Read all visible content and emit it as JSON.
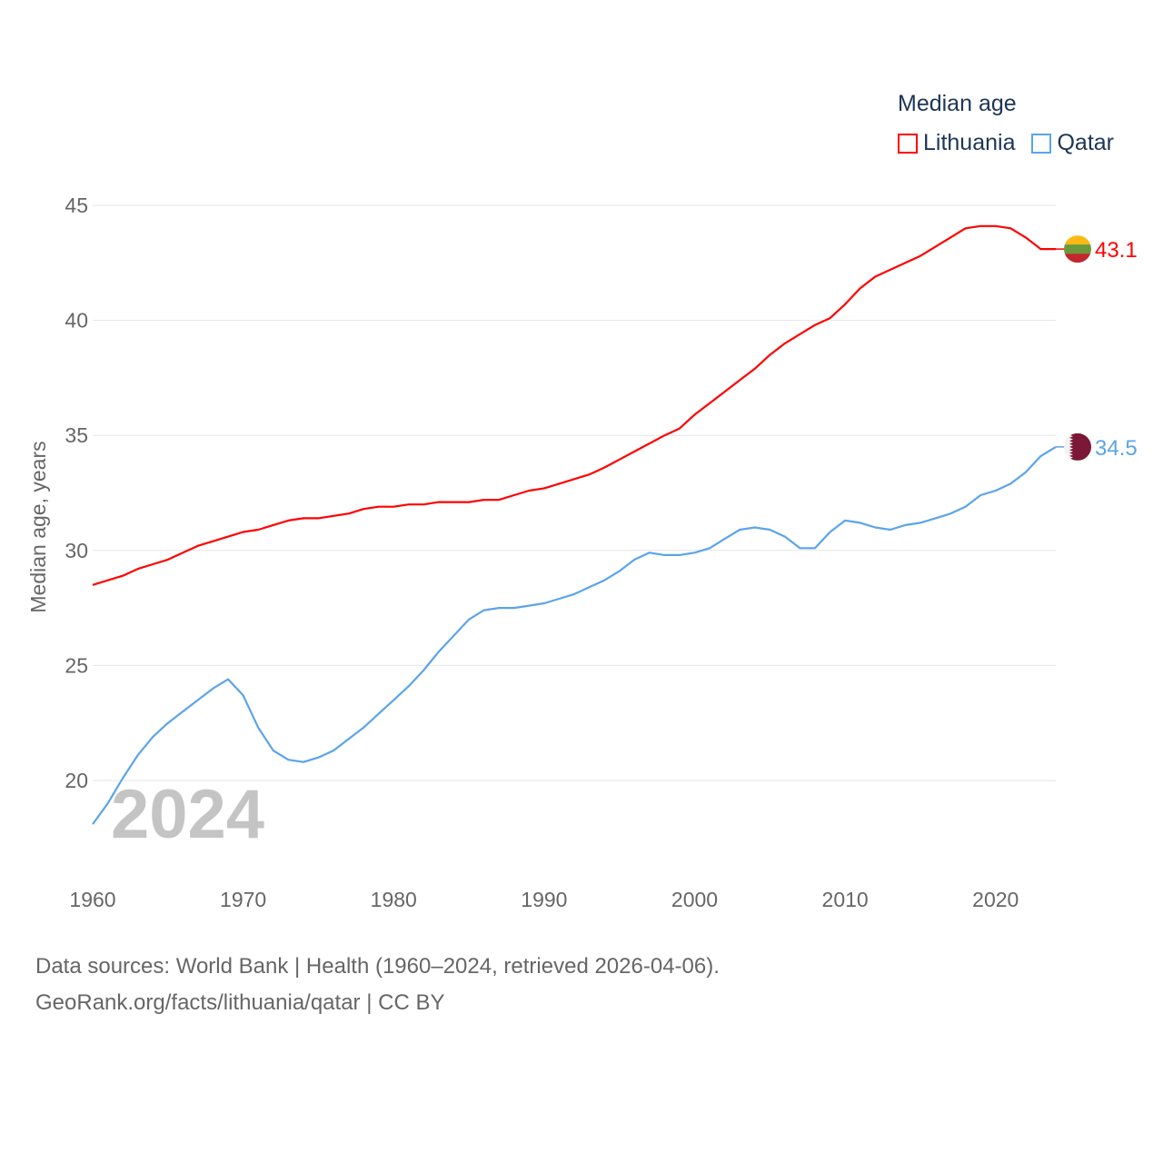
{
  "chart_data": {
    "type": "line",
    "xlabel": "",
    "ylabel": "Median age, years",
    "xlim": [
      1960,
      2024
    ],
    "ylim": [
      18,
      45
    ],
    "yticks": [
      20,
      25,
      30,
      35,
      40,
      45
    ],
    "xticks": [
      1960,
      1970,
      1980,
      1990,
      2000,
      2010,
      2020
    ],
    "grid": true,
    "year_watermark": "2024",
    "legend": {
      "title": "Median age",
      "placement": "top-right"
    },
    "x": [
      1960,
      1961,
      1962,
      1963,
      1964,
      1965,
      1966,
      1967,
      1968,
      1969,
      1970,
      1971,
      1972,
      1973,
      1974,
      1975,
      1976,
      1977,
      1978,
      1979,
      1980,
      1981,
      1982,
      1983,
      1984,
      1985,
      1986,
      1987,
      1988,
      1989,
      1990,
      1991,
      1992,
      1993,
      1994,
      1995,
      1996,
      1997,
      1998,
      1999,
      2000,
      2001,
      2002,
      2003,
      2004,
      2005,
      2006,
      2007,
      2008,
      2009,
      2010,
      2011,
      2012,
      2013,
      2014,
      2015,
      2016,
      2017,
      2018,
      2019,
      2020,
      2021,
      2022,
      2023,
      2024
    ],
    "series": [
      {
        "name": "Lithuania",
        "color": "#ff0000",
        "end_label": "43.1",
        "values": [
          28.5,
          28.7,
          28.9,
          29.2,
          29.4,
          29.6,
          29.9,
          30.2,
          30.4,
          30.6,
          30.8,
          30.9,
          31.1,
          31.3,
          31.4,
          31.4,
          31.5,
          31.6,
          31.8,
          31.9,
          31.9,
          32.0,
          32.0,
          32.1,
          32.1,
          32.1,
          32.2,
          32.2,
          32.4,
          32.6,
          32.7,
          32.9,
          33.1,
          33.3,
          33.6,
          33.95,
          34.3,
          34.65,
          35.0,
          35.3,
          35.9,
          36.4,
          36.9,
          37.4,
          37.9,
          38.5,
          39.0,
          39.4,
          39.8,
          40.1,
          40.7,
          41.4,
          41.9,
          42.2,
          42.5,
          42.8,
          43.2,
          43.6,
          44.0,
          44.1,
          44.1,
          44.0,
          43.6,
          43.1,
          43.1
        ]
      },
      {
        "name": "Qatar",
        "color": "#5ba4ea",
        "end_label": "34.5",
        "values": [
          18.1,
          19.0,
          20.1,
          21.1,
          21.9,
          22.5,
          23.0,
          23.5,
          24.0,
          24.4,
          23.7,
          22.3,
          21.3,
          20.9,
          20.8,
          21.0,
          21.3,
          21.8,
          22.3,
          22.9,
          23.5,
          24.1,
          24.8,
          25.6,
          26.3,
          27.0,
          27.4,
          27.5,
          27.5,
          27.6,
          27.7,
          27.9,
          28.1,
          28.4,
          28.7,
          29.1,
          29.6,
          29.9,
          29.8,
          29.8,
          29.9,
          30.1,
          30.5,
          30.9,
          31.0,
          30.9,
          30.6,
          30.1,
          30.1,
          30.8,
          31.3,
          31.2,
          31.0,
          30.9,
          31.1,
          31.2,
          31.4,
          31.6,
          31.9,
          32.4,
          32.6,
          32.9,
          33.4,
          34.1,
          34.5
        ]
      }
    ]
  },
  "source": {
    "line1": "Data sources: World Bank | Health (1960–2024, retrieved 2026-04-06).",
    "line2": "GeoRank.org/facts/lithuania/qatar | CC BY"
  }
}
